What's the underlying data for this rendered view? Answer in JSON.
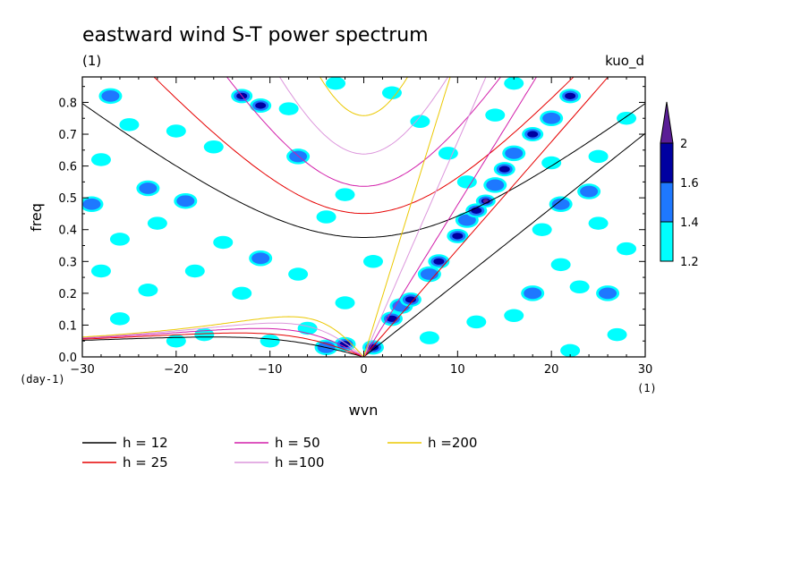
{
  "chart_data": {
    "type": "heatmap",
    "title": "eastward wind S-T power spectrum",
    "subtitle_left": "(1)",
    "subtitle_right": "kuo_d",
    "xlabel": "wvn",
    "ylabel": "freq",
    "x_unit_label": "(1)",
    "y_unit_label": "(day-1)",
    "xlim": [
      -30,
      30
    ],
    "ylim": [
      0,
      0.88
    ],
    "xticks": [
      -30,
      -20,
      -10,
      0,
      10,
      20,
      30
    ],
    "yticks": [
      0.0,
      0.1,
      0.2,
      0.3,
      0.4,
      0.5,
      0.6,
      0.7,
      0.8
    ],
    "colorbar": {
      "levels": [
        1.2,
        1.4,
        1.6,
        2
      ],
      "tick_labels": [
        "1.2",
        "1.4",
        "1.6",
        "2"
      ],
      "colors": [
        "#00ffff",
        "#1e78ff",
        "#0000a0",
        "#5a1e96"
      ]
    },
    "dispersion_curves": [
      {
        "name": "h = 12",
        "h": 12,
        "color": "#000000"
      },
      {
        "name": "h = 25",
        "h": 25,
        "color": "#e60000"
      },
      {
        "name": "h = 50",
        "h": 50,
        "color": "#d21eaa"
      },
      {
        "name": "h =100",
        "h": 100,
        "color": "#dc96dc"
      },
      {
        "name": "h =200",
        "h": 200,
        "color": "#ebc800"
      }
    ],
    "power_blobs": [
      {
        "x": 13,
        "y": 0.49,
        "level": 2
      },
      {
        "x": 12,
        "y": 0.46,
        "level": 1.6
      },
      {
        "x": 15,
        "y": 0.59,
        "level": 1.6
      },
      {
        "x": 18,
        "y": 0.7,
        "level": 1.6
      },
      {
        "x": 22,
        "y": 0.82,
        "level": 1.6
      },
      {
        "x": 10,
        "y": 0.38,
        "level": 1.6
      },
      {
        "x": 8,
        "y": 0.3,
        "level": 1.6
      },
      {
        "x": 5,
        "y": 0.18,
        "level": 1.6
      },
      {
        "x": 3,
        "y": 0.12,
        "level": 1.6
      },
      {
        "x": 1,
        "y": 0.03,
        "level": 1.6
      },
      {
        "x": -2,
        "y": 0.04,
        "level": 1.6
      },
      {
        "x": -13,
        "y": 0.82,
        "level": 1.6
      },
      {
        "x": -11,
        "y": 0.79,
        "level": 1.6
      },
      {
        "x": -4,
        "y": 0.03,
        "level": 1.4
      },
      {
        "x": 4,
        "y": 0.16,
        "level": 1.4
      },
      {
        "x": 7,
        "y": 0.26,
        "level": 1.4
      },
      {
        "x": 11,
        "y": 0.43,
        "level": 1.4
      },
      {
        "x": 14,
        "y": 0.54,
        "level": 1.4
      },
      {
        "x": 16,
        "y": 0.64,
        "level": 1.4
      },
      {
        "x": 20,
        "y": 0.75,
        "level": 1.4
      },
      {
        "x": -27,
        "y": 0.82,
        "level": 1.4
      },
      {
        "x": -23,
        "y": 0.53,
        "level": 1.4
      },
      {
        "x": -19,
        "y": 0.49,
        "level": 1.4
      },
      {
        "x": -11,
        "y": 0.31,
        "level": 1.4
      },
      {
        "x": -29,
        "y": 0.48,
        "level": 1.4
      },
      {
        "x": -7,
        "y": 0.63,
        "level": 1.4
      },
      {
        "x": 24,
        "y": 0.52,
        "level": 1.4
      },
      {
        "x": 21,
        "y": 0.48,
        "level": 1.4
      },
      {
        "x": 18,
        "y": 0.2,
        "level": 1.4
      },
      {
        "x": 26,
        "y": 0.2,
        "level": 1.4
      },
      {
        "x": -25,
        "y": 0.73,
        "level": 1.2
      },
      {
        "x": -20,
        "y": 0.71,
        "level": 1.2
      },
      {
        "x": -16,
        "y": 0.66,
        "level": 1.2
      },
      {
        "x": -28,
        "y": 0.62,
        "level": 1.2
      },
      {
        "x": -22,
        "y": 0.42,
        "level": 1.2
      },
      {
        "x": -26,
        "y": 0.37,
        "level": 1.2
      },
      {
        "x": -15,
        "y": 0.36,
        "level": 1.2
      },
      {
        "x": -18,
        "y": 0.27,
        "level": 1.2
      },
      {
        "x": -28,
        "y": 0.27,
        "level": 1.2
      },
      {
        "x": -23,
        "y": 0.21,
        "level": 1.2
      },
      {
        "x": -13,
        "y": 0.2,
        "level": 1.2
      },
      {
        "x": -7,
        "y": 0.26,
        "level": 1.2
      },
      {
        "x": -4,
        "y": 0.44,
        "level": 1.2
      },
      {
        "x": -2,
        "y": 0.51,
        "level": 1.2
      },
      {
        "x": -8,
        "y": 0.78,
        "level": 1.2
      },
      {
        "x": -3,
        "y": 0.86,
        "level": 1.2
      },
      {
        "x": 3,
        "y": 0.83,
        "level": 1.2
      },
      {
        "x": 1,
        "y": 0.3,
        "level": 1.2
      },
      {
        "x": -2,
        "y": 0.17,
        "level": 1.2
      },
      {
        "x": -10,
        "y": 0.05,
        "level": 1.2
      },
      {
        "x": -20,
        "y": 0.05,
        "level": 1.2
      },
      {
        "x": -26,
        "y": 0.12,
        "level": 1.2
      },
      {
        "x": 7,
        "y": 0.06,
        "level": 1.2
      },
      {
        "x": 12,
        "y": 0.11,
        "level": 1.2
      },
      {
        "x": 16,
        "y": 0.13,
        "level": 1.2
      },
      {
        "x": 23,
        "y": 0.22,
        "level": 1.2
      },
      {
        "x": 28,
        "y": 0.34,
        "level": 1.2
      },
      {
        "x": 27,
        "y": 0.07,
        "level": 1.2
      },
      {
        "x": 22,
        "y": 0.02,
        "level": 1.2
      },
      {
        "x": 25,
        "y": 0.63,
        "level": 1.2
      },
      {
        "x": 28,
        "y": 0.75,
        "level": 1.2
      },
      {
        "x": 20,
        "y": 0.61,
        "level": 1.2
      },
      {
        "x": 16,
        "y": 0.86,
        "level": 1.2
      },
      {
        "x": 14,
        "y": 0.76,
        "level": 1.2
      },
      {
        "x": 6,
        "y": 0.74,
        "level": 1.2
      },
      {
        "x": 9,
        "y": 0.64,
        "level": 1.2
      },
      {
        "x": 11,
        "y": 0.55,
        "level": 1.2
      },
      {
        "x": 19,
        "y": 0.4,
        "level": 1.2
      },
      {
        "x": 25,
        "y": 0.42,
        "level": 1.2
      },
      {
        "x": 21,
        "y": 0.29,
        "level": 1.2
      },
      {
        "x": -17,
        "y": 0.07,
        "level": 1.2
      },
      {
        "x": -6,
        "y": 0.09,
        "level": 1.2
      }
    ]
  }
}
